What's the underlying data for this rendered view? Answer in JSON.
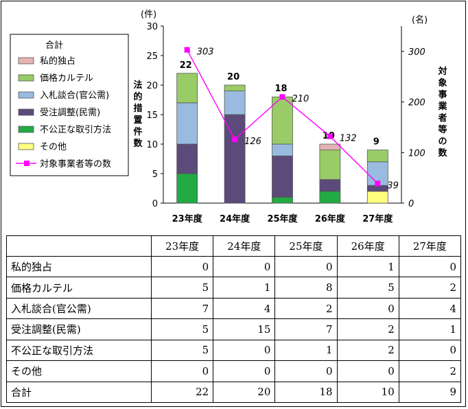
{
  "chart_data": {
    "type": "bar",
    "stacked": true,
    "categories": [
      "23年度",
      "24年度",
      "25年度",
      "26年度",
      "27年度"
    ],
    "series": [
      {
        "name": "私的独占",
        "values": [
          0,
          0,
          0,
          1,
          0
        ],
        "color": "#e6b3b3"
      },
      {
        "name": "価格カルテル",
        "values": [
          5,
          1,
          8,
          5,
          2
        ],
        "color": "#99cc66"
      },
      {
        "name": "入札談合(官公需)",
        "values": [
          7,
          4,
          2,
          0,
          4
        ],
        "color": "#99bbe0"
      },
      {
        "name": "受注調整(民需)",
        "values": [
          5,
          15,
          7,
          2,
          1
        ],
        "color": "#5c4a7a"
      },
      {
        "name": "不公正な取引方法",
        "values": [
          5,
          0,
          1,
          2,
          0
        ],
        "color": "#22aa44"
      },
      {
        "name": "その他",
        "values": [
          0,
          0,
          0,
          0,
          2
        ],
        "color": "#ffff80"
      }
    ],
    "totals": [
      22,
      20,
      18,
      10,
      9
    ],
    "line_series": {
      "name": "対象事業者等の数",
      "values": [
        303,
        126,
        210,
        132,
        39
      ],
      "color": "#ff00ff"
    },
    "legend_title": "合計",
    "ylabel_left": "法的措置件数",
    "ylabel_left_unit": "(件)",
    "ylabel_right": "対象事業者等の数",
    "ylabel_right_unit": "(名)",
    "ylim_left": [
      0,
      30
    ],
    "yticks_left": [
      0,
      5,
      10,
      15,
      20,
      25,
      30
    ],
    "ylim_right": [
      0,
      350
    ],
    "yticks_right": [
      0,
      100,
      200,
      300
    ],
    "legend_position": "left"
  },
  "table": {
    "headers": [
      "",
      "23年度",
      "24年度",
      "25年度",
      "26年度",
      "27年度"
    ],
    "rows": [
      {
        "label": "私的独占",
        "values": [
          0,
          0,
          0,
          1,
          0
        ]
      },
      {
        "label": "価格カルテル",
        "values": [
          5,
          1,
          8,
          5,
          2
        ]
      },
      {
        "label": "入札談合(官公需)",
        "values": [
          7,
          4,
          2,
          0,
          4
        ]
      },
      {
        "label": "受注調整(民需)",
        "values": [
          5,
          15,
          7,
          2,
          1
        ]
      },
      {
        "label": "不公正な取引方法",
        "values": [
          5,
          0,
          1,
          2,
          0
        ]
      },
      {
        "label": "その他",
        "values": [
          0,
          0,
          0,
          0,
          2
        ]
      },
      {
        "label": "合計",
        "values": [
          22,
          20,
          18,
          10,
          9
        ]
      }
    ]
  }
}
